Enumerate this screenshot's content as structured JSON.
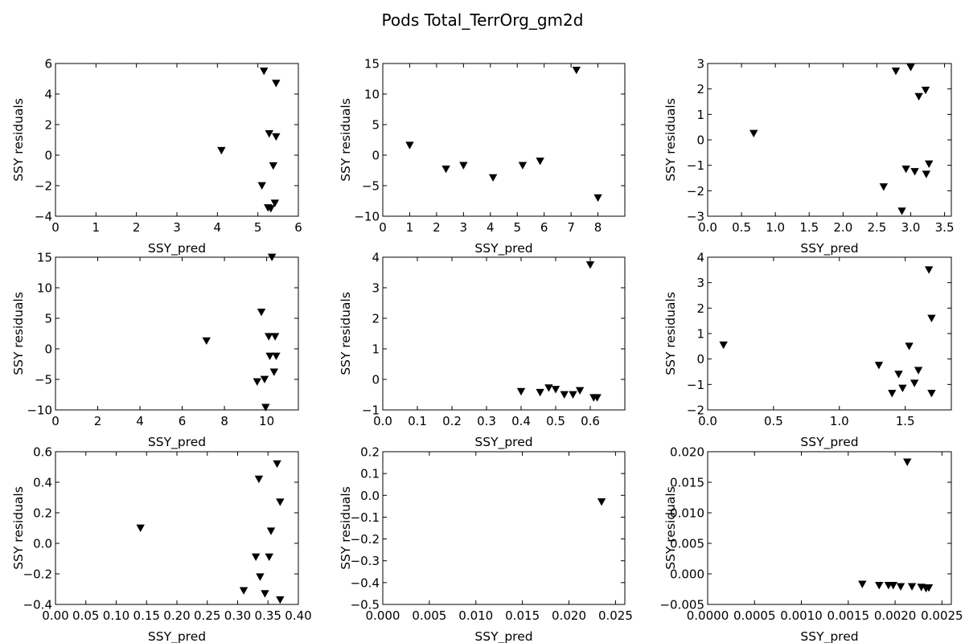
{
  "figure": {
    "title": "Pods Total_TerrOrg_gm2d",
    "marker": "triangle-down",
    "marker_color": "#000000"
  },
  "chart_data": [
    {
      "type": "scatter",
      "xlabel": "SSY_pred",
      "ylabel": "SSY residuals",
      "xlim": [
        0,
        6
      ],
      "ylim": [
        -4,
        6
      ],
      "xticks": [
        0,
        1,
        2,
        3,
        4,
        5,
        6
      ],
      "xtick_labels": [
        "0",
        "1",
        "2",
        "3",
        "4",
        "5",
        "6"
      ],
      "yticks": [
        -4,
        -2,
        0,
        2,
        4,
        6
      ],
      "ytick_labels": [
        "−4",
        "−2",
        "0",
        "2",
        "4",
        "6"
      ],
      "points": [
        [
          4.1,
          0.3
        ],
        [
          5.15,
          5.5
        ],
        [
          5.45,
          4.7
        ],
        [
          5.28,
          1.4
        ],
        [
          5.45,
          1.2
        ],
        [
          5.38,
          -0.7
        ],
        [
          5.1,
          -2.0
        ],
        [
          5.42,
          -3.15
        ],
        [
          5.25,
          -3.45
        ],
        [
          5.32,
          -3.5
        ]
      ]
    },
    {
      "type": "scatter",
      "xlabel": "SSY_pred",
      "ylabel": "SSY residuals",
      "xlim": [
        0,
        9
      ],
      "ylim": [
        -10,
        15
      ],
      "xticks": [
        0,
        1,
        2,
        3,
        4,
        5,
        6,
        7,
        8
      ],
      "xtick_labels": [
        "0",
        "1",
        "2",
        "3",
        "4",
        "5",
        "6",
        "7",
        "8"
      ],
      "yticks": [
        -10,
        -5,
        0,
        5,
        10,
        15
      ],
      "ytick_labels": [
        "−10",
        "−5",
        "0",
        "5",
        "10",
        "15"
      ],
      "points": [
        [
          1.0,
          1.6
        ],
        [
          2.35,
          -2.3
        ],
        [
          3.0,
          -1.7
        ],
        [
          4.1,
          -3.7
        ],
        [
          5.2,
          -1.7
        ],
        [
          5.85,
          -1.0
        ],
        [
          7.2,
          13.9
        ],
        [
          8.0,
          -7.0
        ]
      ]
    },
    {
      "type": "scatter",
      "xlabel": "SSY_pred",
      "ylabel": "SSY residuals",
      "xlim": [
        0,
        3.6
      ],
      "ylim": [
        -3,
        3
      ],
      "xticks": [
        0,
        0.5,
        1,
        1.5,
        2,
        2.5,
        3,
        3.5
      ],
      "xtick_labels": [
        "0.0",
        "0.5",
        "1.0",
        "1.5",
        "2.0",
        "2.5",
        "3.0",
        "3.5"
      ],
      "yticks": [
        -3,
        -2,
        -1,
        0,
        1,
        2,
        3
      ],
      "ytick_labels": [
        "−3",
        "−2",
        "−1",
        "0",
        "1",
        "2",
        "3"
      ],
      "points": [
        [
          0.68,
          0.25
        ],
        [
          2.6,
          -1.85
        ],
        [
          2.78,
          2.7
        ],
        [
          2.87,
          -2.8
        ],
        [
          2.93,
          -1.15
        ],
        [
          3.0,
          2.85
        ],
        [
          3.06,
          -1.25
        ],
        [
          3.12,
          1.7
        ],
        [
          3.22,
          1.95
        ],
        [
          3.23,
          -1.35
        ],
        [
          3.27,
          -0.95
        ]
      ]
    },
    {
      "type": "scatter",
      "xlabel": "SSY_pred",
      "ylabel": "SSY residuals",
      "xlim": [
        0,
        11.5
      ],
      "ylim": [
        -10,
        15
      ],
      "xticks": [
        0,
        2,
        4,
        6,
        8,
        10
      ],
      "xtick_labels": [
        "0",
        "2",
        "4",
        "6",
        "8",
        "10"
      ],
      "yticks": [
        -10,
        -5,
        0,
        5,
        10,
        15
      ],
      "ytick_labels": [
        "−10",
        "−5",
        "0",
        "5",
        "10",
        "15"
      ],
      "points": [
        [
          7.15,
          1.3
        ],
        [
          9.75,
          6.0
        ],
        [
          10.25,
          15.0
        ],
        [
          10.1,
          2.0
        ],
        [
          10.4,
          2.0
        ],
        [
          10.15,
          -1.2
        ],
        [
          10.45,
          -1.2
        ],
        [
          10.35,
          -3.8
        ],
        [
          9.55,
          -5.4
        ],
        [
          9.9,
          -5.0
        ],
        [
          9.95,
          -9.6
        ]
      ]
    },
    {
      "type": "scatter",
      "xlabel": "SSY_pred",
      "ylabel": "SSY residuals",
      "xlim": [
        0,
        0.7
      ],
      "ylim": [
        -1,
        4
      ],
      "xticks": [
        0,
        0.1,
        0.2,
        0.3,
        0.4,
        0.5,
        0.6
      ],
      "xtick_labels": [
        "0.0",
        "0.1",
        "0.2",
        "0.3",
        "0.4",
        "0.5",
        "0.6"
      ],
      "yticks": [
        -1,
        0,
        1,
        2,
        3,
        4
      ],
      "ytick_labels": [
        "−1",
        "0",
        "1",
        "2",
        "3",
        "4"
      ],
      "points": [
        [
          0.6,
          3.75
        ],
        [
          0.4,
          -0.4
        ],
        [
          0.455,
          -0.43
        ],
        [
          0.48,
          -0.28
        ],
        [
          0.5,
          -0.33
        ],
        [
          0.525,
          -0.5
        ],
        [
          0.55,
          -0.5
        ],
        [
          0.57,
          -0.37
        ],
        [
          0.61,
          -0.6
        ],
        [
          0.62,
          -0.6
        ]
      ]
    },
    {
      "type": "scatter",
      "xlabel": "SSY_pred",
      "ylabel": "SSY residuals",
      "xlim": [
        0,
        1.85
      ],
      "ylim": [
        -2,
        4
      ],
      "xticks": [
        0,
        0.5,
        1,
        1.5
      ],
      "xtick_labels": [
        "0.0",
        "0.5",
        "1.0",
        "1.5"
      ],
      "yticks": [
        -2,
        -1,
        0,
        1,
        2,
        3,
        4
      ],
      "ytick_labels": [
        "−2",
        "−1",
        "0",
        "1",
        "2",
        "3",
        "4"
      ],
      "points": [
        [
          0.12,
          0.55
        ],
        [
          1.3,
          -0.25
        ],
        [
          1.4,
          -1.35
        ],
        [
          1.45,
          -0.6
        ],
        [
          1.48,
          -1.15
        ],
        [
          1.53,
          0.5
        ],
        [
          1.57,
          -0.95
        ],
        [
          1.6,
          -0.45
        ],
        [
          1.68,
          3.5
        ],
        [
          1.7,
          1.6
        ],
        [
          1.7,
          -1.35
        ]
      ]
    },
    {
      "type": "scatter",
      "xlabel": "SSY_pred",
      "ylabel": "SSY residuals",
      "xlim": [
        0,
        0.4
      ],
      "ylim": [
        -0.4,
        0.6
      ],
      "xticks": [
        0,
        0.05,
        0.1,
        0.15,
        0.2,
        0.25,
        0.3,
        0.35,
        0.4
      ],
      "xtick_labels": [
        "0.00",
        "0.05",
        "0.10",
        "0.15",
        "0.20",
        "0.25",
        "0.30",
        "0.35",
        "0.40"
      ],
      "yticks": [
        -0.4,
        -0.2,
        0,
        0.2,
        0.4,
        0.6
      ],
      "ytick_labels": [
        "−0.4",
        "−0.2",
        "0.0",
        "0.2",
        "0.4",
        "0.6"
      ],
      "points": [
        [
          0.14,
          0.1
        ],
        [
          0.335,
          0.42
        ],
        [
          0.365,
          0.52
        ],
        [
          0.37,
          0.27
        ],
        [
          0.355,
          0.08
        ],
        [
          0.33,
          -0.09
        ],
        [
          0.352,
          -0.09
        ],
        [
          0.337,
          -0.22
        ],
        [
          0.31,
          -0.31
        ],
        [
          0.345,
          -0.33
        ],
        [
          0.37,
          -0.37
        ]
      ]
    },
    {
      "type": "scatter",
      "xlabel": "SSY_pred",
      "ylabel": "SSY residuals",
      "xlim": [
        0,
        0.026
      ],
      "ylim": [
        -0.5,
        0.2
      ],
      "xticks": [
        0,
        0.005,
        0.01,
        0.015,
        0.02,
        0.025
      ],
      "xtick_labels": [
        "0.000",
        "0.005",
        "0.010",
        "0.015",
        "0.020",
        "0.025"
      ],
      "yticks": [
        -0.5,
        -0.4,
        -0.3,
        -0.2,
        -0.1,
        0,
        0.1,
        0.2
      ],
      "ytick_labels": [
        "−0.5",
        "−0.4",
        "−0.3",
        "−0.2",
        "−0.1",
        "0.0",
        "0.1",
        "0.2"
      ],
      "points": [
        [
          0.0235,
          -0.03
        ]
      ]
    },
    {
      "type": "scatter",
      "xlabel": "SSY_pred",
      "ylabel": "SSY residuals",
      "xlim": [
        0,
        0.0026
      ],
      "ylim": [
        -0.005,
        0.02
      ],
      "xticks": [
        0,
        0.0005,
        0.001,
        0.0015,
        0.002,
        0.0025
      ],
      "xtick_labels": [
        "0.0000",
        "0.0005",
        "0.0010",
        "0.0015",
        "0.0020",
        "0.0025"
      ],
      "yticks": [
        -0.005,
        0,
        0.005,
        0.01,
        0.015,
        0.02
      ],
      "ytick_labels": [
        "−0.005",
        "0.000",
        "0.005",
        "0.010",
        "0.015",
        "0.020"
      ],
      "points": [
        [
          0.00213,
          0.0183
        ],
        [
          0.00165,
          -0.0017
        ],
        [
          0.00183,
          -0.0019
        ],
        [
          0.00193,
          -0.0019
        ],
        [
          0.00198,
          -0.0019
        ],
        [
          0.00206,
          -0.0021
        ],
        [
          0.00218,
          -0.0021
        ],
        [
          0.00228,
          -0.0022
        ],
        [
          0.00233,
          -0.0024
        ],
        [
          0.00236,
          -0.0023
        ]
      ]
    }
  ]
}
